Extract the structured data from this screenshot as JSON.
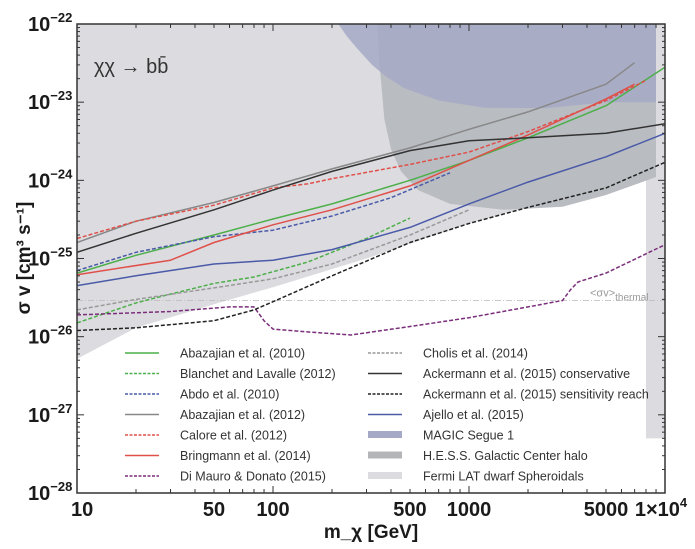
{
  "chart_data": {
    "type": "line",
    "title": "",
    "annotation": "χχ → bb̄",
    "xlabel": "m_χ [GeV]",
    "ylabel": "σ v [cm³ s⁻¹]",
    "xscale": "log",
    "yscale": "log",
    "xlim": [
      10,
      10000
    ],
    "ylim": [
      1e-28,
      1e-22
    ],
    "grid": false,
    "x_ticks": [
      {
        "value": 10,
        "label": "10"
      },
      {
        "value": 50,
        "label": "50"
      },
      {
        "value": 100,
        "label": "100"
      },
      {
        "value": 500,
        "label": "500"
      },
      {
        "value": 1000,
        "label": "1000"
      },
      {
        "value": 5000,
        "label": "5000"
      },
      {
        "value": 10000,
        "label": "1×10",
        "exp": "4"
      }
    ],
    "y_ticks": [
      {
        "value": 1e-22,
        "label": "10",
        "exp": "−22"
      },
      {
        "value": 1e-23,
        "label": "10",
        "exp": "−23"
      },
      {
        "value": 1e-24,
        "label": "10",
        "exp": "−24"
      },
      {
        "value": 1e-25,
        "label": "10",
        "exp": "−25"
      },
      {
        "value": 1e-26,
        "label": "10",
        "exp": "−26"
      },
      {
        "value": 1e-27,
        "label": "10",
        "exp": "−27"
      },
      {
        "value": 1e-28,
        "label": "10",
        "exp": "−28"
      }
    ],
    "thermal": {
      "value": 2.9e-26,
      "label": "<σv>",
      "sub": "thermal",
      "color": "#bbbbbb"
    },
    "regions": [
      {
        "name": "Fermi LAT dwarf Spheroidals",
        "color": "#dcdce0",
        "points": [
          [
            10,
            1e-22
          ],
          [
            10000,
            1e-22
          ],
          [
            10000,
            5e-28
          ],
          [
            8000,
            5e-28
          ],
          [
            8000,
            1.6e-24
          ],
          [
            3000,
            6e-25
          ],
          [
            1000,
            2.8e-25
          ],
          [
            300,
            1e-25
          ],
          [
            100,
            4.3e-26
          ],
          [
            50,
            2.6e-26
          ],
          [
            20,
            1.3e-26
          ],
          [
            10,
            5.2e-27
          ]
        ]
      },
      {
        "name": "H.E.S.S. Galactic Center halo",
        "color": "#b9bcc1",
        "points": [
          [
            340,
            1e-22
          ],
          [
            9000,
            1e-22
          ],
          [
            9000,
            1.1e-24
          ],
          [
            5000,
            6.5e-25
          ],
          [
            3000,
            4.6e-25
          ],
          [
            1500,
            4.2e-25
          ],
          [
            800,
            5e-25
          ],
          [
            550,
            7.5e-25
          ],
          [
            450,
            1.3e-24
          ],
          [
            400,
            2.5e-24
          ],
          [
            370,
            6e-24
          ],
          [
            350,
            3e-23
          ]
        ]
      },
      {
        "name": "MAGIC Segue 1",
        "color": "#a6a9c6",
        "points": [
          [
            215,
            1e-22
          ],
          [
            9000,
            1e-22
          ],
          [
            9000,
            1e-23
          ],
          [
            5000,
            1e-23
          ],
          [
            2500,
            8.4e-24
          ],
          [
            1200,
            8.5e-24
          ],
          [
            700,
            1.05e-23
          ],
          [
            470,
            1.5e-23
          ],
          [
            380,
            2.1e-23
          ],
          [
            320,
            3e-23
          ],
          [
            270,
            4.8e-23
          ],
          [
            240,
            6.8e-23
          ]
        ]
      }
    ],
    "series": [
      {
        "name": "Abazajian et al. (2010)",
        "color": "#4daf4a",
        "dash": "solid",
        "x": [
          10,
          20,
          50,
          100,
          200,
          500,
          1000,
          2000,
          5000,
          10000
        ],
        "y": [
          6.5e-26,
          1.1e-25,
          2e-25,
          3.2e-25,
          5e-25,
          1e-24,
          1.8e-24,
          3.5e-24,
          9e-24,
          2.8e-23
        ]
      },
      {
        "name": "Blanchet and Lavalle (2012)",
        "color": "#4daf4a",
        "dash": "dashed",
        "x": [
          10,
          20,
          30,
          50,
          80,
          150,
          300,
          500
        ],
        "y": [
          1.5e-26,
          2.7e-26,
          3.5e-26,
          4.8e-26,
          5.8e-26,
          9e-26,
          1.8e-25,
          3.3e-25
        ]
      },
      {
        "name": "Abdo et al. (2010)",
        "color": "#4a5aa8",
        "dash": "dashed",
        "x": [
          10,
          20,
          50,
          100,
          200,
          400,
          800
        ],
        "y": [
          7e-26,
          1.2e-25,
          1.9e-25,
          2.3e-25,
          3.5e-25,
          6e-25,
          1.25e-24
        ]
      },
      {
        "name": "Abazajian et al. (2012)",
        "color": "#888888",
        "dash": "solid",
        "x": [
          10,
          20,
          50,
          100,
          200,
          500,
          1000,
          2000,
          5000,
          7000
        ],
        "y": [
          1.6e-25,
          3e-25,
          5.2e-25,
          8.5e-25,
          1.4e-24,
          2.6e-24,
          4.5e-24,
          7.5e-24,
          1.7e-23,
          3.2e-23
        ]
      },
      {
        "name": "Calore et al. (2012)",
        "color": "#e0504a",
        "dash": "dashed",
        "x": [
          10,
          20,
          50,
          100,
          150,
          200,
          500,
          1000,
          2000,
          5000,
          8000
        ],
        "y": [
          1.8e-25,
          3e-25,
          4.8e-25,
          8e-25,
          9e-25,
          1.05e-24,
          1.6e-24,
          2.3e-24,
          4.2e-24,
          1.05e-23,
          1.9e-23
        ]
      },
      {
        "name": "Bringmann et al. (2014)",
        "color": "#e0504a",
        "dash": "solid",
        "x": [
          10,
          30,
          50,
          100,
          200,
          500,
          1000,
          2000,
          5000,
          7000
        ],
        "y": [
          6.2e-26,
          9.5e-26,
          1.6e-25,
          2.7e-25,
          4.2e-25,
          8.5e-25,
          1.8e-24,
          3.8e-24,
          1.1e-23,
          1.7e-23
        ]
      },
      {
        "name": "Di Mauro & Donato (2015)",
        "color": "#7a2d7a",
        "dash": "dashed",
        "x": [
          10,
          30,
          60,
          80,
          90,
          100,
          150,
          250,
          500,
          1000,
          2000,
          3000,
          3300,
          3600,
          5000,
          10000
        ],
        "y": [
          1.9e-26,
          2.1e-26,
          2.4e-26,
          2.4e-26,
          1.6e-26,
          1.25e-26,
          1.15e-26,
          1.05e-26,
          1.35e-26,
          1.75e-26,
          2.4e-26,
          2.9e-26,
          4e-26,
          5e-26,
          6.5e-26,
          1.5e-25
        ]
      },
      {
        "name": "Cholis et al. (2014)",
        "color": "#999999",
        "dash": "dashed",
        "x": [
          10,
          20,
          50,
          100,
          200,
          500,
          1000
        ],
        "y": [
          2.2e-26,
          3e-26,
          4.2e-26,
          5.5e-26,
          8.5e-26,
          2e-25,
          4.2e-25
        ]
      },
      {
        "name": "Ackermann et al. (2015) conservative",
        "color": "#333333",
        "dash": "solid",
        "x": [
          10,
          20,
          50,
          100,
          200,
          500,
          1000,
          2000,
          5000,
          10000
        ],
        "y": [
          1.2e-25,
          2.1e-25,
          4.2e-25,
          7.5e-25,
          1.3e-24,
          2.4e-24,
          3.2e-24,
          3.5e-24,
          4e-24,
          5.3e-24
        ]
      },
      {
        "name": "Ackermann et al. (2015) sensitivity reach",
        "color": "#222222",
        "dash": "dashed",
        "x": [
          10,
          20,
          50,
          80,
          100,
          200,
          500,
          1000,
          2000,
          5000,
          10000
        ],
        "y": [
          1.2e-26,
          1.3e-26,
          1.6e-26,
          2.2e-26,
          2.8e-26,
          6e-26,
          1.6e-25,
          2.8e-25,
          4.5e-25,
          8e-25,
          1.7e-24
        ]
      },
      {
        "name": "Ajello et al. (2015)",
        "color": "#4a5aa8",
        "dash": "solid",
        "x": [
          10,
          20,
          50,
          100,
          200,
          500,
          1000,
          2000,
          5000,
          10000
        ],
        "y": [
          4.5e-26,
          6e-26,
          8.5e-26,
          9.5e-26,
          1.3e-25,
          2.5e-25,
          5e-25,
          9.5e-25,
          2e-24,
          4e-24
        ]
      }
    ],
    "legend": {
      "placement": "bottom-center",
      "columns": [
        [
          {
            "label": "Abazajian et al. (2010)",
            "color": "#4daf4a",
            "style": "solid"
          },
          {
            "label": "Blanchet and Lavalle (2012)",
            "color": "#4daf4a",
            "style": "dashed"
          },
          {
            "label": "Abdo et al. (2010)",
            "color": "#4a5aa8",
            "style": "dashed"
          },
          {
            "label": "Abazajian et al. (2012)",
            "color": "#888888",
            "style": "solid"
          },
          {
            "label": "Calore et al. (2012)",
            "color": "#e0504a",
            "style": "dashed"
          },
          {
            "label": "Bringmann et al. (2014)",
            "color": "#e0504a",
            "style": "solid"
          },
          {
            "label": "Di Mauro & Donato (2015)",
            "color": "#7a2d7a",
            "style": "dashed"
          }
        ],
        [
          {
            "label": "Cholis et al. (2014)",
            "color": "#999999",
            "style": "dashed"
          },
          {
            "label": "Ackermann et al. (2015) conservative",
            "color": "#333333",
            "style": "solid"
          },
          {
            "label": "Ackermann et al. (2015) sensitivity reach",
            "color": "#222222",
            "style": "dashed"
          },
          {
            "label": "Ajello et al. (2015)",
            "color": "#4a5aa8",
            "style": "solid"
          },
          {
            "label": "MAGIC Segue 1",
            "color": "#a6a9c6",
            "style": "band"
          },
          {
            "label": "H.E.S.S. Galactic Center halo",
            "color": "#b3b5b9",
            "style": "band"
          },
          {
            "label": "Fermi LAT dwarf Spheroidals",
            "color": "#dcdce0",
            "style": "band"
          }
        ]
      ]
    }
  }
}
